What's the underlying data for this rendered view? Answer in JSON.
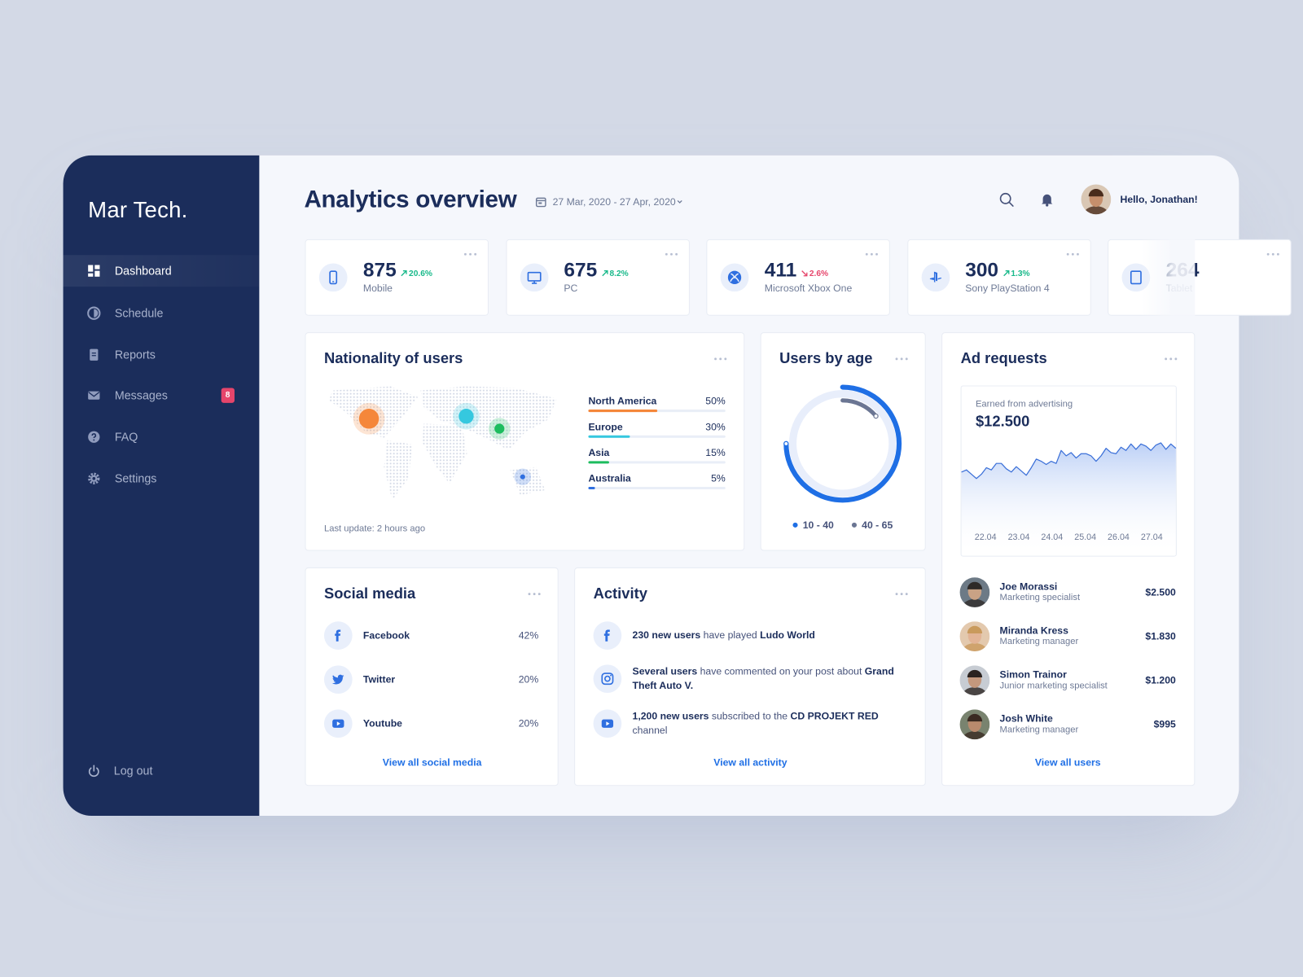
{
  "sidebar": {
    "brand": "Mar Tech.",
    "nav": [
      {
        "label": "Dashboard",
        "active": true
      },
      {
        "label": "Schedule"
      },
      {
        "label": "Reports"
      },
      {
        "label": "Messages",
        "badge": "8"
      },
      {
        "label": "FAQ"
      },
      {
        "label": "Settings"
      }
    ],
    "logout": "Log out"
  },
  "header": {
    "title": "Analytics overview",
    "date_range": "27 Mar, 2020 - 27 Apr, 2020",
    "greeting": "Hello, Jonathan!"
  },
  "stats": [
    {
      "value": 875,
      "change": "20.6%",
      "trend": "up",
      "label": "Mobile"
    },
    {
      "value": 675,
      "change": "8.2%",
      "trend": "up",
      "label": "PC"
    },
    {
      "value": 411,
      "change": "2.6%",
      "trend": "down",
      "label": "Microsoft Xbox One"
    },
    {
      "value": 300,
      "change": "1.3%",
      "trend": "up",
      "label": "Sony PlayStation 4"
    },
    {
      "value": 264,
      "change": "",
      "trend": "up",
      "label": "Tablet"
    }
  ],
  "nationality": {
    "title": "Nationality of users",
    "items": [
      {
        "name": "North America",
        "value": 50,
        "value_label": "50%",
        "color": "#f5873a"
      },
      {
        "name": "Europe",
        "value": 30,
        "value_label": "30%",
        "color": "#35c8df"
      },
      {
        "name": "Asia",
        "value": 15,
        "value_label": "15%",
        "color": "#1dbd5e"
      },
      {
        "name": "Australia",
        "value": 5,
        "value_label": "5%",
        "color": "#2f6fe0"
      }
    ],
    "footer": "Last update: 2 hours ago"
  },
  "age": {
    "title": "Users by age",
    "series": [
      {
        "name": "10 - 40",
        "value": 75,
        "color": "#1f6fe5"
      },
      {
        "name": "40 - 65",
        "value": 14,
        "color": "#6b7693"
      }
    ]
  },
  "ads": {
    "title": "Ad requests",
    "caption": "Earned from advertising",
    "total": "$12.500",
    "x_labels": [
      "22.04",
      "23.04",
      "24.04",
      "25.04",
      "26.04",
      "27.04"
    ],
    "values": [
      36,
      38,
      34,
      30,
      34,
      40,
      38,
      44,
      44,
      39,
      36,
      41,
      37,
      33,
      40,
      48,
      46,
      43,
      46,
      44,
      56,
      51,
      54,
      49,
      53,
      53,
      51,
      46,
      51,
      58,
      54,
      53,
      59,
      56,
      62,
      57,
      62,
      60,
      56,
      61,
      63,
      57,
      62,
      58
    ],
    "users": [
      {
        "name": "Joe Morassi",
        "role": "Marketing specialist",
        "amount": "$2.500"
      },
      {
        "name": "Miranda Kress",
        "role": "Marketing manager",
        "amount": "$1.830"
      },
      {
        "name": "Simon Trainor",
        "role": "Junior marketing specialist",
        "amount": "$1.200"
      },
      {
        "name": "Josh White",
        "role": "Marketing manager",
        "amount": "$995"
      }
    ],
    "link": "View all users"
  },
  "social": {
    "title": "Social media",
    "items": [
      {
        "name": "Facebook",
        "value": "42%"
      },
      {
        "name": "Twitter",
        "value": "20%"
      },
      {
        "name": "Youtube",
        "value": "20%"
      }
    ],
    "link": "View all social media"
  },
  "activity": {
    "title": "Activity",
    "items": [
      [
        {
          "text": "230 new users",
          "bold": true
        },
        {
          "text": " have played "
        },
        {
          "text": "Ludo World",
          "bold": true
        }
      ],
      [
        {
          "text": "Several users",
          "bold": true
        },
        {
          "text": " have commented on your post about "
        },
        {
          "text": "Grand Theft Auto V.",
          "bold": true
        }
      ],
      [
        {
          "text": "1,200 new users",
          "bold": true
        },
        {
          "text": " subscribed to the "
        },
        {
          "text": "CD PROJEKT RED",
          "bold": true
        },
        {
          "text": " channel"
        }
      ]
    ],
    "link": "View all activity"
  }
}
